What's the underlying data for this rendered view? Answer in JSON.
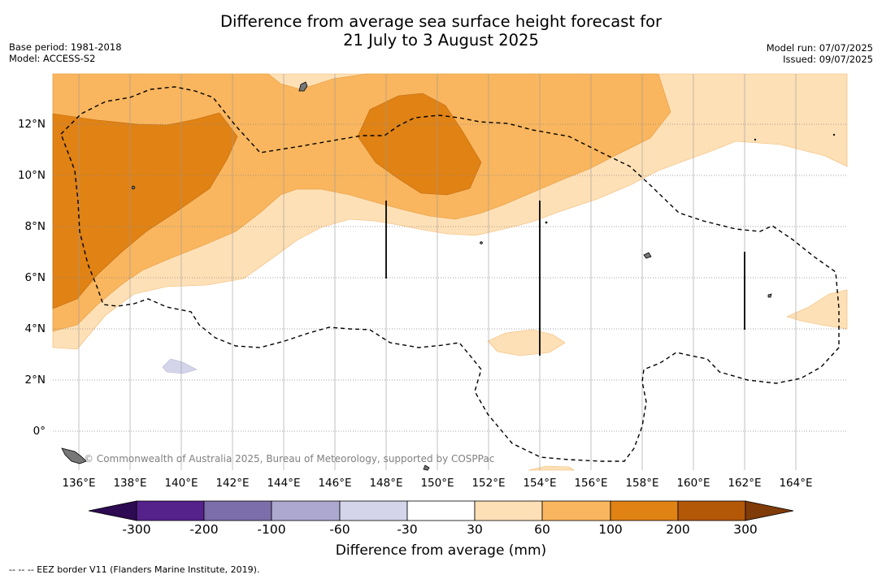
{
  "title_line1": "Difference from average sea surface height forecast for",
  "title_line2": "21 July to 3 August 2025",
  "base_period": "Base period: 1981-2018",
  "model": "Model: ACCESS-S2",
  "model_run": "Model run: 07/07/2025",
  "issued": "Issued: 09/07/2025",
  "copyright": "© Commonwealth of Australia 2025, Bureau of Meteorology, supported by COSPPac",
  "footnote": "--  --  -- EEZ border V11 (Flanders Marine Institute, 2019).",
  "lon_labels": [
    "136°E",
    "138°E",
    "140°E",
    "142°E",
    "144°E",
    "146°E",
    "148°E",
    "150°E",
    "152°E",
    "154°E",
    "156°E",
    "158°E",
    "160°E",
    "162°E",
    "164°E"
  ],
  "lat_labels": [
    "12°N",
    "10°N",
    "8°N",
    "6°N",
    "4°N",
    "2°N",
    "0°"
  ],
  "colorbar": {
    "title": "Difference from average (mm)",
    "ticks": [
      "-300",
      "-200",
      "-100",
      "-60",
      "-30",
      "30",
      "60",
      "100",
      "200",
      "300"
    ],
    "colors": [
      "#2d0a52",
      "#55218a",
      "#7c6eaa",
      "#ada8d0",
      "#d4d5ea",
      "#ffffff",
      "#fee0b6",
      "#f9b65e",
      "#e08214",
      "#b35806",
      "#7f3b08"
    ]
  },
  "map_extent": {
    "lon_min": 135,
    "lon_max": 166,
    "lat_min": -1.5,
    "lat_max": 14
  }
}
